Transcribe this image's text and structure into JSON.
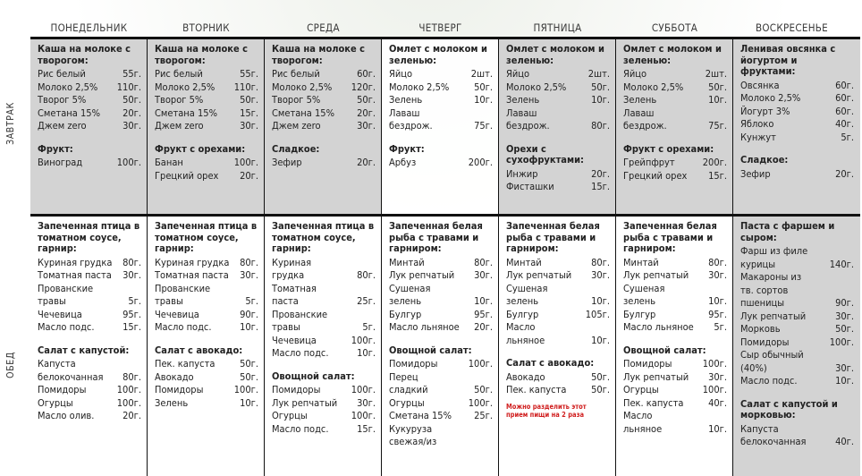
{
  "days": [
    "ПОНЕДЕЛЬНИК",
    "ВТОРНИК",
    "СРЕДА",
    "ЧЕТВЕРГ",
    "ПЯТНИЦА",
    "СУББОТА",
    "ВОСКРЕСЕНЬЕ"
  ],
  "meals": {
    "breakfast": "ЗАВТРАК",
    "lunch": "ОБЕД"
  },
  "breakfast": [
    {
      "sections": [
        {
          "title": "Каша на молоке с творогом:",
          "items": [
            [
              "Рис белый",
              "55г."
            ],
            [
              "Молоко 2,5%",
              "110г."
            ],
            [
              "Творог 5%",
              "50г."
            ],
            [
              "Сметана 15%",
              "20г."
            ],
            [
              "Джем zero",
              "30г."
            ]
          ]
        },
        {
          "title": "Фрукт:",
          "items": [
            [
              "Виноград",
              "100г."
            ]
          ]
        }
      ]
    },
    {
      "sections": [
        {
          "title": "Каша на молоке с творогом:",
          "items": [
            [
              "Рис белый",
              "55г."
            ],
            [
              "Молоко 2,5%",
              "110г."
            ],
            [
              "Творог 5%",
              "50г."
            ],
            [
              "Сметана 15%",
              "15г."
            ],
            [
              "Джем zero",
              "30г."
            ]
          ]
        },
        {
          "title": "Фрукт с орехами:",
          "items": [
            [
              "Банан",
              "100г."
            ],
            [
              "Грецкий орех",
              "20г."
            ]
          ]
        }
      ]
    },
    {
      "sections": [
        {
          "title": "Каша на молоке с творогом:",
          "items": [
            [
              "Рис белый",
              "60г."
            ],
            [
              "Молоко 2,5%",
              "120г."
            ],
            [
              "Творог 5%",
              "50г."
            ],
            [
              "Сметана 15%",
              "20г."
            ],
            [
              "Джем zero",
              "30г."
            ]
          ]
        },
        {
          "title": "Сладкое:",
          "items": [
            [
              "Зефир",
              "20г."
            ]
          ]
        }
      ]
    },
    {
      "sections": [
        {
          "title": "Омлет с молоком и зеленью:",
          "items": [
            [
              "Яйцо",
              "2шт."
            ],
            [
              "Молоко 2,5%",
              "50г."
            ],
            [
              "Зелень",
              "10г."
            ],
            [
              "Лаваш",
              ""
            ],
            [
              "бездрож.",
              "75г."
            ]
          ]
        },
        {
          "title": "Фрукт:",
          "items": [
            [
              "Арбуз",
              "200г."
            ]
          ]
        }
      ]
    },
    {
      "sections": [
        {
          "title": "Омлет с молоком и зеленью:",
          "items": [
            [
              "Яйцо",
              "2шт."
            ],
            [
              "Молоко 2,5%",
              "50г."
            ],
            [
              "Зелень",
              "10г."
            ],
            [
              "Лаваш",
              ""
            ],
            [
              "бездрож.",
              "80г."
            ]
          ]
        },
        {
          "title": "Орехи с сухофруктами:",
          "items": [
            [
              "Инжир",
              "20г."
            ],
            [
              "Фисташки",
              "15г."
            ]
          ]
        }
      ]
    },
    {
      "sections": [
        {
          "title": "Омлет с молоком и зеленью:",
          "items": [
            [
              "Яйцо",
              "2шт."
            ],
            [
              "Молоко 2,5%",
              "50г."
            ],
            [
              "Зелень",
              "10г."
            ],
            [
              "Лаваш",
              ""
            ],
            [
              "бездрож.",
              "75г."
            ]
          ]
        },
        {
          "title": "Фрукт с орехами:",
          "items": [
            [
              "Грейпфрут",
              "200г."
            ],
            [
              "Грецкий орех",
              "15г."
            ]
          ]
        }
      ]
    },
    {
      "sections": [
        {
          "title": "Ленивая овсянка с йогуртом и фруктами:",
          "items": [
            [
              "Овсянка",
              "60г."
            ],
            [
              "Молоко 2,5%",
              "60г."
            ],
            [
              "Йогурт 3%",
              "60г."
            ],
            [
              "Яблоко",
              "40г."
            ],
            [
              "Кунжут",
              "5г."
            ]
          ]
        },
        {
          "title": "Сладкое:",
          "items": [
            [
              "Зефир",
              "20г."
            ]
          ]
        }
      ]
    }
  ],
  "lunch": [
    {
      "sections": [
        {
          "title": "Запеченная птица в томатном соусе, гарнир:",
          "items": [
            [
              "Куриная грудка",
              "80г."
            ],
            [
              "Томатная паста",
              "30г."
            ],
            [
              "Прованские",
              ""
            ],
            [
              "травы",
              "5г."
            ],
            [
              "Чечевица",
              "95г."
            ],
            [
              "Масло подс.",
              "15г."
            ]
          ]
        },
        {
          "title": "Салат с капустой:",
          "items": [
            [
              "Капуста",
              ""
            ],
            [
              "белокочанная",
              "80г."
            ],
            [
              "Помидоры",
              "100г."
            ],
            [
              "Огурцы",
              "100г."
            ],
            [
              "Масло олив.",
              "20г."
            ]
          ]
        }
      ]
    },
    {
      "sections": [
        {
          "title": "Запеченная птица в томатном соусе, гарнир:",
          "items": [
            [
              "Куриная грудка",
              "80г."
            ],
            [
              "Томатная паста",
              "30г."
            ],
            [
              "Прованские",
              ""
            ],
            [
              "травы",
              "5г."
            ],
            [
              "Чечевица",
              "90г."
            ],
            [
              "Масло подс.",
              "10г."
            ]
          ]
        },
        {
          "title": "Салат с авокадо:",
          "items": [
            [
              "Пек. капуста",
              "50г."
            ],
            [
              "Авокадо",
              "50г."
            ],
            [
              "Помидоры",
              "100г."
            ],
            [
              "Зелень",
              "10г."
            ]
          ]
        }
      ]
    },
    {
      "sections": [
        {
          "title": "Запеченная птица в томатном соусе, гарнир:",
          "items": [
            [
              "Куриная",
              ""
            ],
            [
              "грудка",
              "80г."
            ],
            [
              "Томатная",
              ""
            ],
            [
              "паста",
              "25г."
            ],
            [
              "Прованские",
              ""
            ],
            [
              "травы",
              "5г."
            ],
            [
              "Чечевица",
              "100г."
            ],
            [
              "Масло подс.",
              "10г."
            ]
          ]
        },
        {
          "title": "Овощной салат:",
          "items": [
            [
              "Помидоры",
              "100г."
            ],
            [
              "Лук репчатый",
              "30г."
            ],
            [
              "Огурцы",
              "100г."
            ],
            [
              "Масло подс.",
              "15г."
            ]
          ]
        }
      ]
    },
    {
      "sections": [
        {
          "title": "Запеченная белая рыба с травами и гарниром:",
          "items": [
            [
              "Минтай",
              "80г."
            ],
            [
              "Лук репчатый",
              "30г."
            ],
            [
              "Сушеная",
              ""
            ],
            [
              "зелень",
              "10г."
            ],
            [
              "Булгур",
              "95г."
            ],
            [
              "Масло льняное",
              "20г."
            ]
          ]
        },
        {
          "title": "Овощной салат:",
          "items": [
            [
              "Помидоры",
              "100г."
            ],
            [
              "Перец",
              ""
            ],
            [
              "сладкий",
              "50г."
            ],
            [
              "Огурцы",
              "100г."
            ],
            [
              "Сметана 15%",
              "25г."
            ],
            [
              "Кукуруза",
              ""
            ],
            [
              "свежая/из",
              ""
            ]
          ]
        }
      ]
    },
    {
      "sections": [
        {
          "title": "Запеченная белая рыба с травами и гарниром:",
          "items": [
            [
              "Минтай",
              "80г."
            ],
            [
              "Лук репчатый",
              "30г."
            ],
            [
              "Сушеная",
              ""
            ],
            [
              "зелень",
              "10г."
            ],
            [
              "Булгур",
              "105г."
            ],
            [
              "Масло",
              ""
            ],
            [
              "льняное",
              "10г."
            ]
          ]
        },
        {
          "title": "Салат с авокадо:",
          "items": [
            [
              "Авокадо",
              "50г."
            ],
            [
              "Пек. капуста",
              "50г."
            ]
          ],
          "note": "Можно разделить этот прием пищи на 2 раза"
        }
      ]
    },
    {
      "sections": [
        {
          "title": "Запеченная белая рыба с травами и гарниром:",
          "items": [
            [
              "Минтай",
              "80г."
            ],
            [
              "Лук репчатый",
              "30г."
            ],
            [
              "Сушеная",
              ""
            ],
            [
              "зелень",
              "10г."
            ],
            [
              "Булгур",
              "95г."
            ],
            [
              "Масло льняное",
              "5г."
            ]
          ]
        },
        {
          "title": "Овощной салат:",
          "items": [
            [
              "Помидоры",
              "100г."
            ],
            [
              "Лук репчатый",
              "30г."
            ],
            [
              "Огурцы",
              "100г."
            ],
            [
              "Пек. капуста",
              "40г."
            ],
            [
              "Масло",
              ""
            ],
            [
              "льняное",
              "10г."
            ]
          ]
        }
      ]
    },
    {
      "sections": [
        {
          "title": "Паста с фаршем и сыром:",
          "items": [
            [
              "Фарш из филе",
              ""
            ],
            [
              "курицы",
              "140г."
            ],
            [
              "Макароны из",
              ""
            ],
            [
              "тв. сортов",
              ""
            ],
            [
              "пшеницы",
              "90г."
            ],
            [
              "Лук репчатый",
              "30г."
            ],
            [
              "Морковь",
              "50г."
            ],
            [
              "Помидоры",
              "100г."
            ],
            [
              "Сыр обычный",
              ""
            ],
            [
              "(40%)",
              "30г."
            ],
            [
              "Масло подс.",
              "10г."
            ]
          ]
        },
        {
          "title": "Салат с капустой и морковью:",
          "items": [
            [
              "Капуста",
              ""
            ],
            [
              "белокочанная",
              "40г."
            ]
          ]
        }
      ]
    }
  ]
}
